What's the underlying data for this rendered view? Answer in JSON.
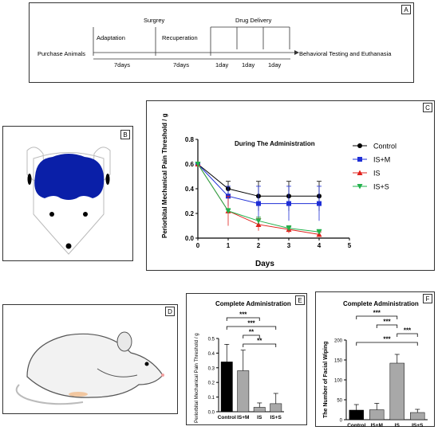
{
  "panelA": {
    "letter": "A",
    "purchase": "Purchase Animals",
    "adaptation": "Adaptation",
    "surgery": "Surgrey",
    "recuperation": "Recuperation",
    "drug_delivery": "Drug Delivery",
    "behavioral": "Behavioral Testing and Euthanasia",
    "durations": [
      "7days",
      "7days",
      "1day",
      "1day",
      "1day"
    ]
  },
  "panelB": {
    "letter": "B",
    "brain_color": "#0a1fa8"
  },
  "panelC": {
    "letter": "C",
    "chart_data": {
      "type": "line",
      "title": "During The Administration",
      "xlabel": "Days",
      "ylabel": "Periorbital Mechanical Pain Threshold / g",
      "x": [
        0,
        1,
        2,
        3,
        4
      ],
      "xlim": [
        0,
        5
      ],
      "ylim": [
        0,
        0.8
      ],
      "xticks": [
        "0",
        "1",
        "2",
        "3",
        "4",
        "5"
      ],
      "yticks": [
        "0.0",
        "0.2",
        "0.4",
        "0.6",
        "0.8"
      ],
      "legend_position": "right",
      "series": [
        {
          "name": "Control",
          "color": "#000000",
          "marker": "circle",
          "values": [
            0.6,
            0.4,
            0.34,
            0.34,
            0.34
          ],
          "err": [
            0,
            0.06,
            0.12,
            0.12,
            0.12
          ]
        },
        {
          "name": "IS+M",
          "color": "#1f2fd6",
          "marker": "square",
          "values": [
            0.6,
            0.34,
            0.28,
            0.28,
            0.28
          ],
          "err": [
            0,
            0.08,
            0.14,
            0.14,
            0.14
          ]
        },
        {
          "name": "IS",
          "color": "#e0201b",
          "marker": "triangle",
          "values": [
            0.6,
            0.22,
            0.11,
            0.07,
            0.03
          ],
          "err": [
            0,
            0.12,
            0.05,
            0.03,
            0.02
          ]
        },
        {
          "name": "IS+S",
          "color": "#22b14c",
          "marker": "triangle-down",
          "values": [
            0.6,
            0.22,
            0.14,
            0.08,
            0.05
          ],
          "err": [
            0,
            0.02,
            0.03,
            0.02,
            0.02
          ]
        }
      ]
    }
  },
  "panelD": {
    "letter": "D"
  },
  "panelE": {
    "letter": "E",
    "chart_data": {
      "type": "bar",
      "title": "Complete Administration",
      "ylabel": "Periorbital Mechanical Pain Threshold / g",
      "categories": [
        "Control",
        "IS+M",
        "IS",
        "IS+S"
      ],
      "values": [
        0.34,
        0.28,
        0.03,
        0.055
      ],
      "err": [
        0.12,
        0.14,
        0.03,
        0.07
      ],
      "colors": [
        "#000000",
        "#a8a8a8",
        "#a8a8a8",
        "#a8a8a8"
      ],
      "ylim": [
        0,
        0.5
      ],
      "yticks": [
        "0.0",
        "0.1",
        "0.2",
        "0.3",
        "0.4",
        "0.5"
      ],
      "significance": [
        "***",
        "***",
        "**",
        "**"
      ]
    }
  },
  "panelF": {
    "letter": "F",
    "chart_data": {
      "type": "bar",
      "title": "Complete Administration",
      "ylabel": "The Number of Facial Wiping",
      "categories": [
        "Control",
        "IS+M",
        "IS",
        "IS+S"
      ],
      "values": [
        24,
        25,
        142,
        18
      ],
      "err": [
        14,
        16,
        22,
        8
      ],
      "colors": [
        "#000000",
        "#a8a8a8",
        "#a8a8a8",
        "#a8a8a8"
      ],
      "ylim": [
        0,
        200
      ],
      "yticks": [
        "0",
        "50",
        "100",
        "150",
        "200"
      ],
      "significance": [
        "***",
        "***",
        "***",
        "***"
      ]
    }
  }
}
